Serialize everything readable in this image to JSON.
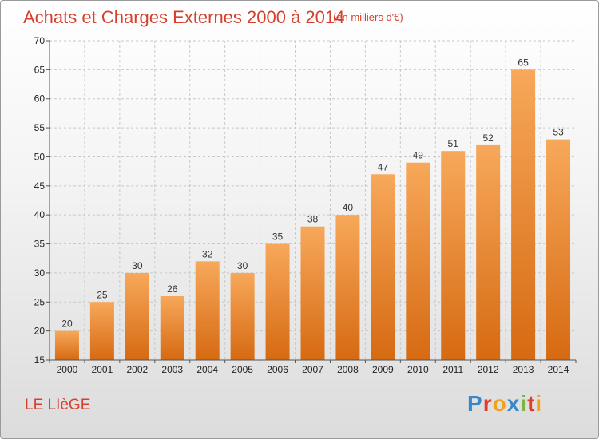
{
  "header": {
    "title": "Achats et Charges Externes 2000 à 2014",
    "unit": "(en milliers d'€)"
  },
  "footer": {
    "commune": "LE LIèGE",
    "logo": "Proxiti",
    "logo_colors": [
      "#3a87c8",
      "#e23b2e",
      "#f2a21a",
      "#3a87c8",
      "#7ab640",
      "#e23b2e",
      "#f2a21a"
    ]
  },
  "colors": {
    "bar_top": "#f7a85a",
    "bar_bottom": "#d66a12",
    "grid": "#c8c8c8",
    "axis": "#555555"
  },
  "chart_data": {
    "type": "bar",
    "title": "Achats et Charges Externes 2000 à 2014",
    "categories": [
      "2000",
      "2001",
      "2002",
      "2003",
      "2004",
      "2005",
      "2006",
      "2007",
      "2008",
      "2009",
      "2010",
      "2011",
      "2012",
      "2013",
      "2014"
    ],
    "values": [
      20,
      25,
      30,
      26,
      32,
      30,
      35,
      38,
      40,
      47,
      49,
      51,
      52,
      65,
      53
    ],
    "ylim": [
      15,
      70
    ],
    "yticks": [
      15,
      20,
      25,
      30,
      35,
      40,
      45,
      50,
      55,
      60,
      65,
      70
    ],
    "grid": true
  }
}
